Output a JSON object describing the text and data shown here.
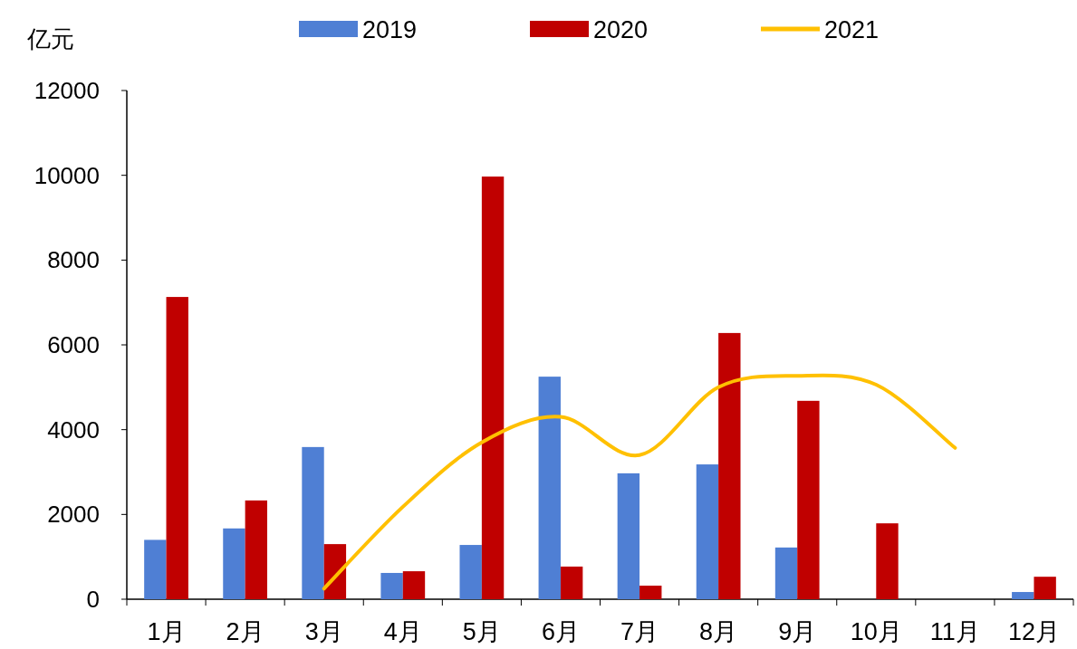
{
  "chart_data": {
    "type": "bar",
    "ylabel": "亿元",
    "categories": [
      "1月",
      "2月",
      "3月",
      "4月",
      "5月",
      "6月",
      "7月",
      "8月",
      "9月",
      "10月",
      "11月",
      "12月"
    ],
    "series": [
      {
        "name": "2019",
        "color": "#4f7fd4",
        "values": [
          1400,
          1670,
          3590,
          620,
          1280,
          5250,
          2970,
          3180,
          1220,
          null,
          null,
          170
        ]
      },
      {
        "name": "2020",
        "color": "#c00000",
        "values": [
          7130,
          2330,
          1300,
          660,
          9970,
          770,
          320,
          6280,
          4680,
          1790,
          null,
          530
        ]
      },
      {
        "name": "2021",
        "type": "line",
        "color": "#ffc000",
        "values": [
          null,
          null,
          250,
          2180,
          3700,
          4300,
          3400,
          5000,
          5270,
          5060,
          3570,
          null
        ]
      }
    ],
    "ylim": [
      0,
      12000
    ],
    "yticks": [
      0,
      2000,
      4000,
      6000,
      8000,
      10000,
      12000
    ],
    "grid": false,
    "legend": "top"
  }
}
